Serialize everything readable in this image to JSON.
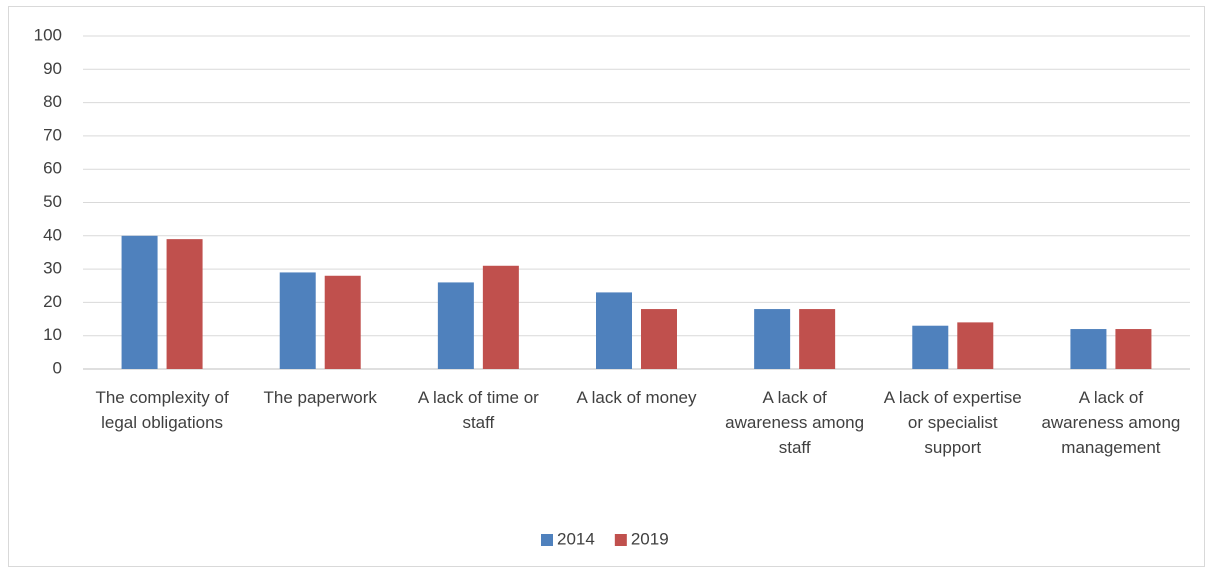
{
  "chart_data": {
    "type": "bar",
    "categories": [
      "The complexity of legal obligations",
      "The paperwork",
      "A lack of time or staff",
      "A lack of money",
      "A lack of awareness among staff",
      "A lack of expertise or specialist support",
      "A lack of awareness among management"
    ],
    "series": [
      {
        "name": "2014",
        "color": "#4f81bd",
        "values": [
          40,
          29,
          26,
          23,
          18,
          13,
          12
        ]
      },
      {
        "name": "2019",
        "color": "#c0504d",
        "values": [
          39,
          28,
          31,
          18,
          18,
          14,
          12
        ]
      }
    ],
    "ylim": [
      0,
      100
    ],
    "yticks": [
      0,
      10,
      20,
      30,
      40,
      50,
      60,
      70,
      80,
      90,
      100
    ],
    "grid": true,
    "legend": "bottom"
  }
}
